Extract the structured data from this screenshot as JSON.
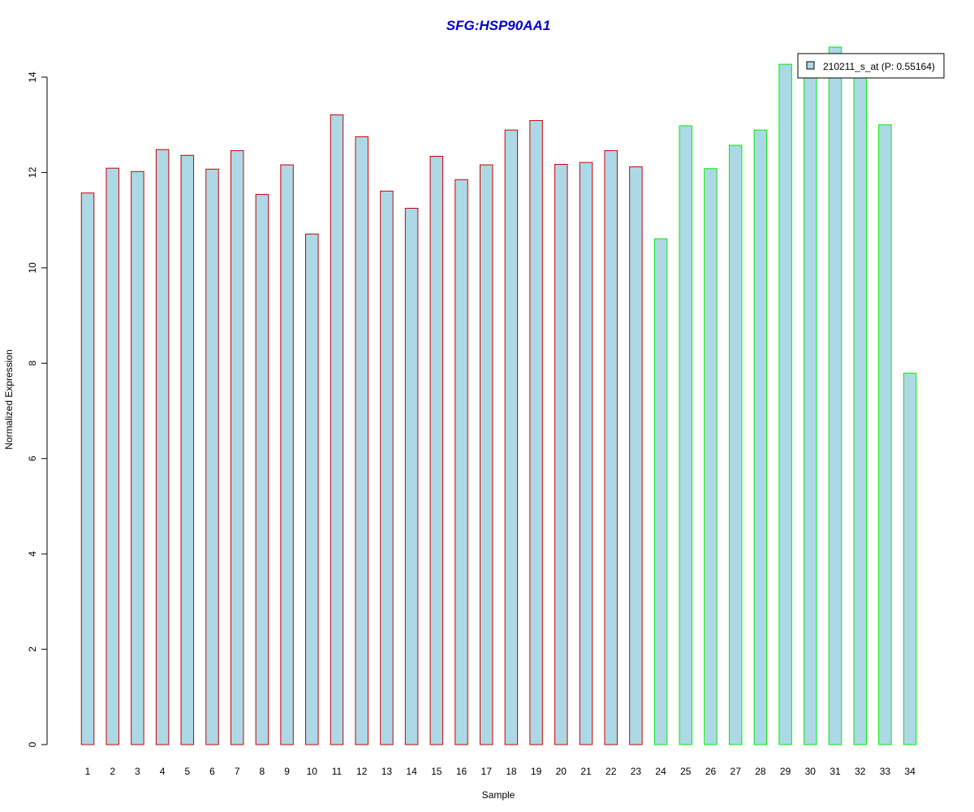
{
  "chart_data": {
    "type": "bar",
    "title": "SFG:HSP90AA1",
    "xlabel": "Sample",
    "ylabel": "Normalized Expression",
    "categories": [
      "1",
      "2",
      "3",
      "4",
      "5",
      "6",
      "7",
      "8",
      "9",
      "10",
      "11",
      "12",
      "13",
      "14",
      "15",
      "16",
      "17",
      "18",
      "19",
      "20",
      "21",
      "22",
      "23",
      "24",
      "25",
      "26",
      "27",
      "28",
      "29",
      "30",
      "31",
      "32",
      "33",
      "34"
    ],
    "series": [
      {
        "name": "210211_s_at (P: 0.55164)",
        "values": [
          11.57,
          12.09,
          12.02,
          12.48,
          12.36,
          12.07,
          12.46,
          11.54,
          12.16,
          10.71,
          13.21,
          12.75,
          11.61,
          11.25,
          12.34,
          11.85,
          12.16,
          12.89,
          13.09,
          12.17,
          12.21,
          12.46,
          12.12,
          10.61,
          12.98,
          12.08,
          12.57,
          12.89,
          14.27,
          14.3,
          14.63,
          14.3,
          13.0,
          7.79
        ]
      }
    ],
    "groups": [
      {
        "from": 1,
        "to": 23,
        "border_color": "#cc0000"
      },
      {
        "from": 24,
        "to": 34,
        "border_color": "#00ee00"
      }
    ],
    "bar_fill": "#add8e6",
    "title_color": "#0000cc",
    "ylim": [
      0,
      14
    ],
    "yticks": [
      0,
      2,
      4,
      6,
      8,
      10,
      12,
      14
    ],
    "legend_position": "top-right",
    "grid": false
  }
}
